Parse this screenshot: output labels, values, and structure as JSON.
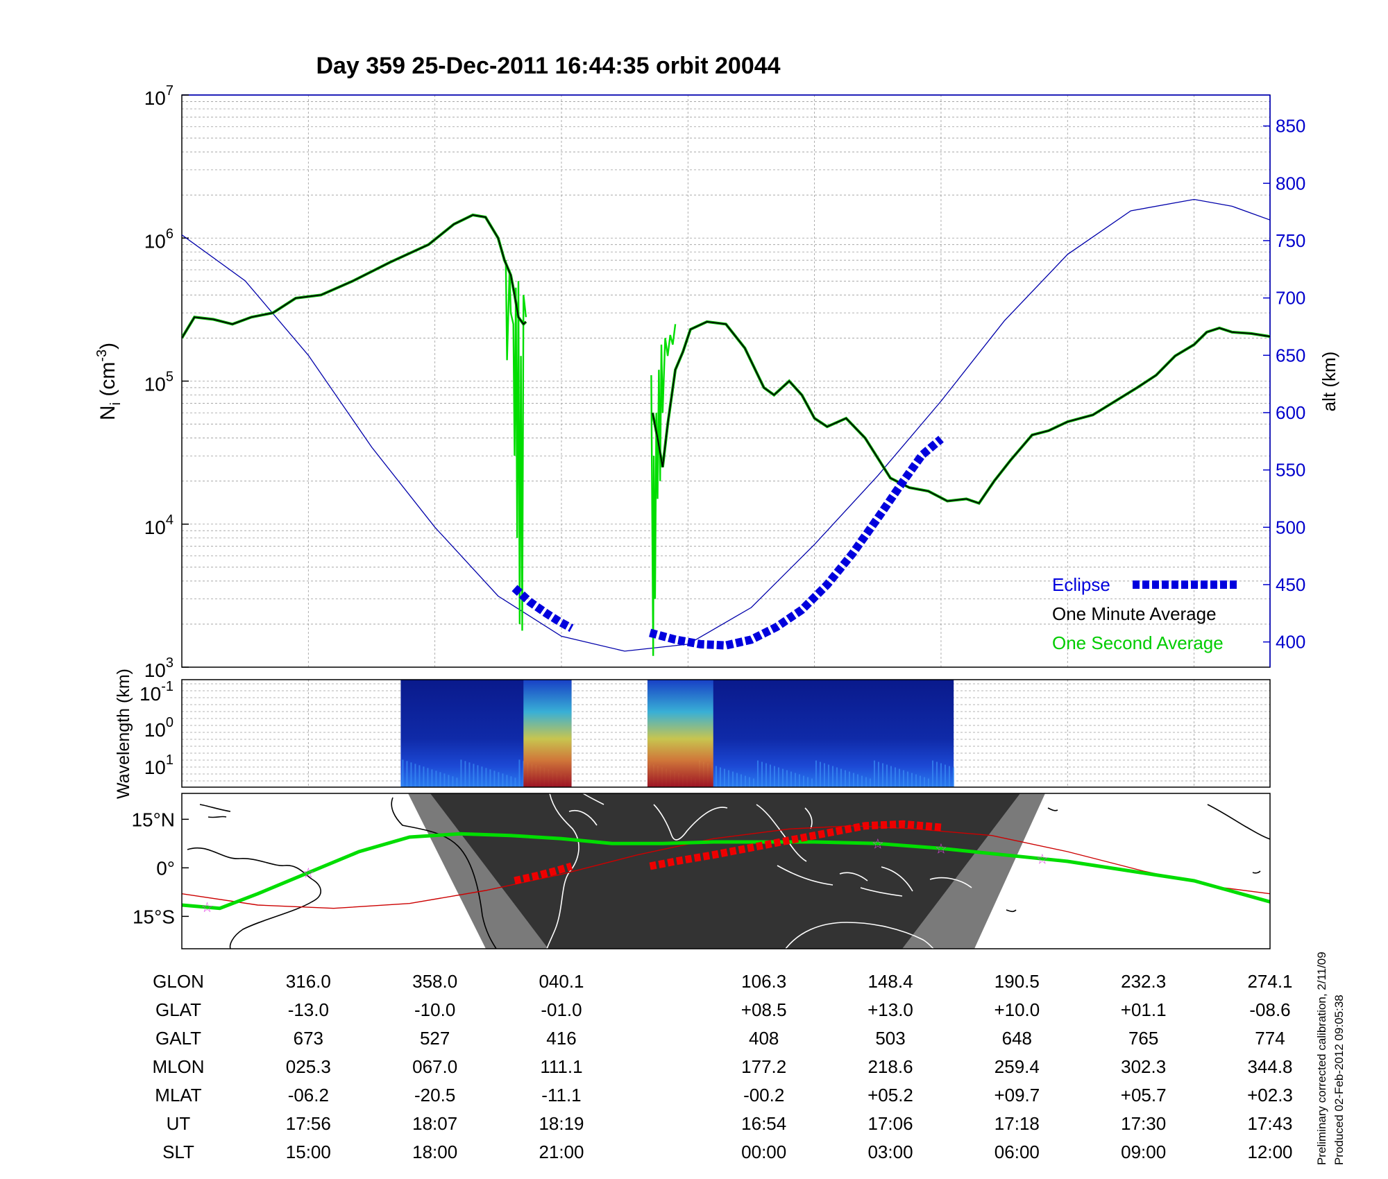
{
  "title": "Day 359  25-Dec-2011 16:44:35   orbit 20044",
  "chart_data": [
    {
      "type": "line",
      "panel": "ion density",
      "ylabel": "N_i (cm^-3)",
      "ylabel_main": "N",
      "ylabel_sub": "i",
      "ylabel_unit": "(cm",
      "ylabel_exp": "-3",
      "ylabel_close": ")",
      "yscale": "log",
      "ylim": [
        1000,
        10000000
      ],
      "y_ticks": [
        {
          "value": 1000,
          "base": "10",
          "exp": "3"
        },
        {
          "value": 10000,
          "base": "10",
          "exp": "4"
        },
        {
          "value": 100000,
          "base": "10",
          "exp": "5"
        },
        {
          "value": 1000000,
          "base": "10",
          "exp": "6"
        },
        {
          "value": 10000000,
          "base": "10",
          "exp": "7"
        }
      ],
      "xlim": [
        0,
        8.6
      ],
      "y2label": "alt (km)",
      "y2lim": [
        378,
        877
      ],
      "y2_ticks": [
        400,
        450,
        500,
        550,
        600,
        650,
        700,
        750,
        800,
        850
      ],
      "color_eclipse": "#0000dd",
      "color_minute": "#000000",
      "color_second": "#00dd00",
      "color_alt": "#0000aa",
      "legend": [
        {
          "label": "Eclipse",
          "color": "#0000dd"
        },
        {
          "label": "One Minute Average",
          "color": "#000000"
        },
        {
          "label": "One Second Average",
          "color": "#00dd00"
        }
      ],
      "series": [
        {
          "name": "One Minute Average",
          "segments": [
            [
              [
                0,
                200000
              ],
              [
                0.1,
                280000
              ],
              [
                0.25,
                270000
              ],
              [
                0.4,
                250000
              ],
              [
                0.55,
                280000
              ],
              [
                0.72,
                300000
              ],
              [
                0.9,
                380000
              ],
              [
                1.1,
                400000
              ],
              [
                1.35,
                500000
              ],
              [
                1.65,
                680000
              ],
              [
                1.95,
                900000
              ],
              [
                2.15,
                1250000
              ],
              [
                2.3,
                1450000
              ],
              [
                2.4,
                1400000
              ],
              [
                2.5,
                1000000
              ],
              [
                2.55,
                700000
              ],
              [
                2.6,
                550000
              ],
              [
                2.63,
                400000
              ],
              [
                2.66,
                280000
              ],
              [
                2.7,
                250000
              ],
              [
                2.72,
                260000
              ]
            ],
            [
              [
                3.72,
                60000
              ],
              [
                3.76,
                40000
              ],
              [
                3.8,
                25000
              ],
              [
                3.84,
                50000
              ],
              [
                3.9,
                120000
              ],
              [
                3.96,
                160000
              ],
              [
                4.02,
                230000
              ],
              [
                4.15,
                260000
              ],
              [
                4.3,
                250000
              ],
              [
                4.45,
                170000
              ],
              [
                4.6,
                90000
              ],
              [
                4.68,
                80000
              ],
              [
                4.8,
                100000
              ],
              [
                4.9,
                80000
              ],
              [
                5.0,
                55000
              ],
              [
                5.1,
                48000
              ],
              [
                5.25,
                55000
              ],
              [
                5.4,
                40000
              ],
              [
                5.6,
                21000
              ],
              [
                5.75,
                18000
              ],
              [
                5.9,
                17000
              ],
              [
                6.05,
                14500
              ],
              [
                6.2,
                15000
              ],
              [
                6.3,
                14000
              ],
              [
                6.42,
                20000
              ],
              [
                6.55,
                28000
              ],
              [
                6.72,
                42000
              ],
              [
                6.85,
                45000
              ],
              [
                7.0,
                52000
              ],
              [
                7.2,
                58000
              ],
              [
                7.35,
                70000
              ],
              [
                7.55,
                90000
              ],
              [
                7.7,
                110000
              ],
              [
                7.85,
                150000
              ],
              [
                8.0,
                180000
              ],
              [
                8.1,
                220000
              ],
              [
                8.2,
                235000
              ],
              [
                8.3,
                220000
              ],
              [
                8.45,
                215000
              ],
              [
                8.6,
                205000
              ]
            ]
          ]
        },
        {
          "name": "One Second Average",
          "segments": [
            [
              [
                2.56,
                700000
              ],
              [
                2.57,
                140000
              ],
              [
                2.59,
                600000
              ],
              [
                2.6,
                300000
              ],
              [
                2.62,
                250000
              ],
              [
                2.63,
                30000
              ],
              [
                2.64,
                450000
              ],
              [
                2.65,
                8000
              ],
              [
                2.66,
                500000
              ],
              [
                2.67,
                2000
              ],
              [
                2.68,
                150000
              ],
              [
                2.69,
                1800
              ],
              [
                2.7,
                400000
              ],
              [
                2.72,
                280000
              ]
            ],
            [
              [
                3.71,
                110000
              ],
              [
                3.72,
                5000
              ],
              [
                3.725,
                1200
              ],
              [
                3.73,
                30000
              ],
              [
                3.74,
                3000
              ],
              [
                3.75,
                60000
              ],
              [
                3.76,
                15000
              ],
              [
                3.77,
                120000
              ],
              [
                3.78,
                20000
              ],
              [
                3.79,
                180000
              ],
              [
                3.8,
                60000
              ],
              [
                3.82,
                200000
              ],
              [
                3.84,
                150000
              ],
              [
                3.86,
                210000
              ],
              [
                3.88,
                180000
              ],
              [
                3.9,
                250000
              ]
            ]
          ]
        },
        {
          "name": "Altitude",
          "axis": "y2",
          "points": [
            [
              0,
              755
            ],
            [
              0.5,
              715
            ],
            [
              1.0,
              650
            ],
            [
              1.5,
              570
            ],
            [
              2.0,
              500
            ],
            [
              2.5,
              440
            ],
            [
              3.0,
              405
            ],
            [
              3.5,
              392
            ],
            [
              4.0,
              398
            ],
            [
              4.5,
              430
            ],
            [
              5.0,
              485
            ],
            [
              5.5,
              545
            ],
            [
              6.0,
              610
            ],
            [
              6.5,
              680
            ],
            [
              7.0,
              738
            ],
            [
              7.5,
              776
            ],
            [
              8.0,
              786
            ],
            [
              8.3,
              780
            ],
            [
              8.6,
              768
            ]
          ]
        },
        {
          "name": "Eclipse",
          "axis": "y2",
          "segments": [
            [
              [
                2.63,
                447
              ],
              [
                2.75,
                435
              ],
              [
                2.88,
                425
              ],
              [
                2.98,
                418
              ],
              [
                3.08,
                412
              ]
            ],
            [
              [
                3.7,
                408
              ],
              [
                3.9,
                402
              ],
              [
                4.1,
                398
              ],
              [
                4.3,
                397
              ],
              [
                4.5,
                402
              ],
              [
                4.7,
                413
              ],
              [
                4.9,
                428
              ],
              [
                5.1,
                450
              ],
              [
                5.3,
                477
              ],
              [
                5.5,
                508
              ],
              [
                5.7,
                540
              ],
              [
                5.85,
                563
              ],
              [
                6.0,
                577
              ]
            ]
          ]
        }
      ]
    },
    {
      "type": "heatmap",
      "panel": "spectrogram",
      "ylabel": "Wavelength (km)",
      "y_ticks": [
        {
          "value": 0.1,
          "base": "10",
          "exp": "-1"
        },
        {
          "value": 1,
          "base": "10",
          "exp": "0"
        },
        {
          "value": 10,
          "base": "10",
          "exp": "1"
        }
      ],
      "xlim": [
        0,
        8.6
      ],
      "data_blocks": [
        [
          1.73,
          3.08
        ],
        [
          3.68,
          6.1
        ]
      ],
      "intense_regions": [
        [
          2.7,
          3.08
        ],
        [
          3.68,
          4.2
        ]
      ]
    },
    {
      "type": "line",
      "panel": "ground track",
      "y_ticks": [
        {
          "value": 15,
          "label": "15°N"
        },
        {
          "value": 0,
          "label": "0°"
        },
        {
          "value": -15,
          "label": "15°S"
        }
      ],
      "ylim": [
        -25,
        23
      ],
      "xlim": [
        0,
        8.6
      ],
      "series": [
        {
          "name": "Geographic latitude track",
          "color": "#00dd00",
          "points": [
            [
              0,
              -11.5
            ],
            [
              0.3,
              -12.5
            ],
            [
              0.6,
              -8
            ],
            [
              1.0,
              -1.5
            ],
            [
              1.4,
              5
            ],
            [
              1.8,
              9.5
            ],
            [
              2.2,
              10.5
            ],
            [
              2.6,
              10
            ],
            [
              3.0,
              9
            ],
            [
              3.4,
              7.5
            ],
            [
              3.8,
              7.5
            ],
            [
              4.2,
              8
            ],
            [
              4.6,
              8
            ],
            [
              5.0,
              8
            ],
            [
              5.5,
              7.5
            ],
            [
              6.0,
              6
            ],
            [
              6.5,
              4
            ],
            [
              7.0,
              2
            ],
            [
              7.5,
              -1
            ],
            [
              8.0,
              -4
            ],
            [
              8.6,
              -10.5
            ]
          ]
        },
        {
          "name": "Magnetic equator",
          "color": "#cc0000",
          "points": [
            [
              0,
              -8
            ],
            [
              0.6,
              -11.5
            ],
            [
              1.2,
              -12.5
            ],
            [
              1.8,
              -11
            ],
            [
              2.4,
              -7
            ],
            [
              3.0,
              -2
            ],
            [
              3.6,
              4
            ],
            [
              4.2,
              9
            ],
            [
              4.8,
              12
            ],
            [
              5.3,
              13
            ],
            [
              5.8,
              12
            ],
            [
              6.4,
              10
            ],
            [
              7.0,
              5
            ],
            [
              7.6,
              -1
            ],
            [
              8.2,
              -6
            ],
            [
              8.6,
              -8
            ]
          ]
        },
        {
          "name": "Eclipse track",
          "color": "#ee0000",
          "segments": [
            [
              [
                2.63,
                -4
              ],
              [
                2.8,
                -2.5
              ],
              [
                2.95,
                -1
              ],
              [
                3.08,
                0.5
              ]
            ],
            [
              [
                3.7,
                0.5
              ],
              [
                3.9,
                2
              ],
              [
                4.2,
                4
              ],
              [
                4.6,
                7
              ],
              [
                5.0,
                10
              ],
              [
                5.4,
                13
              ],
              [
                5.7,
                13.5
              ],
              [
                6.0,
                12.5
              ]
            ]
          ]
        }
      ],
      "stars_x": [
        0.2,
        1.0,
        5.5,
        6.0,
        6.8
      ]
    }
  ],
  "table": {
    "row_labels": [
      "GLON",
      "GLAT",
      "GALT",
      "MLON",
      "MLAT",
      "UT",
      "SLT"
    ],
    "columns": [
      {
        "x": 1,
        "values": [
          "316.0",
          "-13.0",
          "673",
          "025.3",
          "-06.2",
          "17:56",
          "15:00"
        ]
      },
      {
        "x": 2,
        "values": [
          "358.0",
          "-10.0",
          "527",
          "067.0",
          "-20.5",
          "18:07",
          "18:00"
        ]
      },
      {
        "x": 3,
        "values": [
          "040.1",
          "-01.0",
          "416",
          "111.1",
          "-11.1",
          "18:19",
          "21:00"
        ]
      },
      {
        "x": 4.6,
        "values": [
          "106.3",
          "+08.5",
          "408",
          "177.2",
          "-00.2",
          "16:54",
          "00:00"
        ]
      },
      {
        "x": 5.6,
        "values": [
          "148.4",
          "+13.0",
          "503",
          "218.6",
          "+05.2",
          "17:06",
          "03:00"
        ]
      },
      {
        "x": 6.6,
        "values": [
          "190.5",
          "+10.0",
          "648",
          "259.4",
          "+09.7",
          "17:18",
          "06:00"
        ]
      },
      {
        "x": 7.6,
        "values": [
          "232.3",
          "+01.1",
          "765",
          "302.3",
          "+05.7",
          "17:30",
          "09:00"
        ]
      },
      {
        "x": 8.6,
        "values": [
          "274.1",
          "-08.6",
          "774",
          "344.8",
          "+02.3",
          "17:43",
          "12:00"
        ]
      }
    ]
  },
  "footnote": {
    "line1": "Preliminary corrected calibration, 2/11/09",
    "line2": "Produced 02-Feb-2012 09:05:38"
  }
}
